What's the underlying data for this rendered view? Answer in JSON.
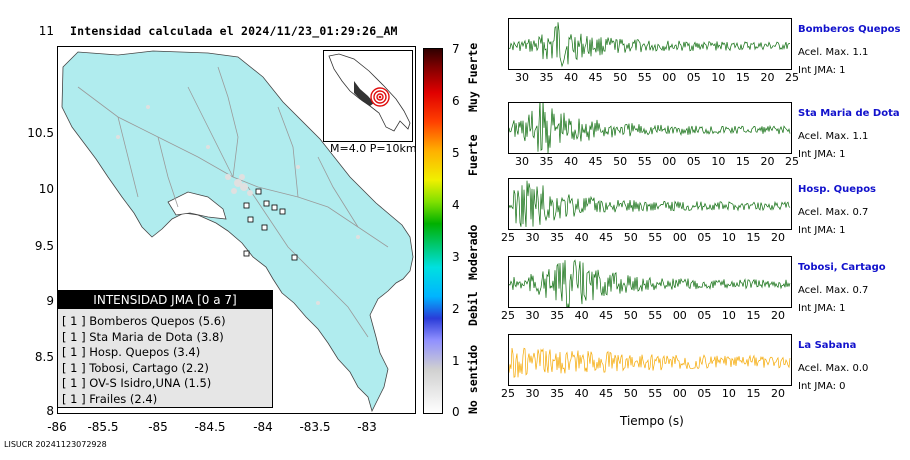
{
  "title": "Intensidad calculada el 2024/11/23_01:29:26_AM",
  "map": {
    "y_ticks": [
      "11",
      "10.5",
      "10",
      "9.5",
      "9",
      "8.5",
      "8"
    ],
    "x_ticks": [
      "-86",
      "-85.5",
      "-85",
      "-84.5",
      "-84",
      "-83.5",
      "-83"
    ],
    "land_color": "#b0ecee",
    "inset_label": "M=4.0 P=10km"
  },
  "legend": {
    "title": "INTENSIDAD JMA [0 a 7]",
    "items": [
      "[ 1 ]  Bomberos Quepos (5.6)",
      "[ 1 ]  Sta Maria de Dota (3.8)",
      "[ 1 ]  Hosp. Quepos (3.4)",
      "[ 1 ]  Tobosi, Cartago (2.2)",
      "[ 1 ]  OV-S Isidro,UNA (1.5)",
      "[ 1 ]  Frailes (2.4)"
    ]
  },
  "colorbar": {
    "ticks": [
      "7",
      "6",
      "5",
      "4",
      "3",
      "2",
      "1",
      "0"
    ],
    "words": [
      "Muy Fuerte",
      "Fuerte",
      "Moderado",
      "Debil",
      "No sentido"
    ]
  },
  "stations": [
    {
      "name": "Bomberos Quepos",
      "accel": "Acel. Max. 1.1",
      "jma": "Int JMA: 1",
      "color": "#0b6b0b",
      "ticks": [
        "30",
        "35",
        "40",
        "45",
        "50",
        "55",
        "00",
        "05",
        "10",
        "15",
        "20",
        "25"
      ]
    },
    {
      "name": "Sta Maria de Dota",
      "accel": "Acel. Max. 1.1",
      "jma": "Int JMA: 1",
      "color": "#0b6b0b",
      "ticks": [
        "30",
        "35",
        "40",
        "45",
        "50",
        "55",
        "00",
        "05",
        "10",
        "15",
        "20",
        "25"
      ]
    },
    {
      "name": "Hosp. Quepos",
      "accel": "Acel. Max. 0.7",
      "jma": "Int JMA: 1",
      "color": "#0b6b0b",
      "ticks": [
        "25",
        "30",
        "35",
        "40",
        "45",
        "50",
        "55",
        "00",
        "05",
        "10",
        "15",
        "20"
      ]
    },
    {
      "name": "Tobosi, Cartago",
      "accel": "Acel. Max. 0.7",
      "jma": "Int JMA: 1",
      "color": "#0b6b0b",
      "ticks": [
        "25",
        "30",
        "35",
        "40",
        "45",
        "50",
        "55",
        "00",
        "05",
        "10",
        "15",
        "20"
      ]
    },
    {
      "name": "La Sabana",
      "accel": "Acel. Max. 0.0",
      "jma": "Int JMA: 0",
      "color": "#f5a800",
      "ticks": [
        "25",
        "30",
        "35",
        "40",
        "45",
        "50",
        "55",
        "00",
        "05",
        "10",
        "15",
        "20"
      ]
    }
  ],
  "time_axis_label": "Tiempo (s)",
  "footer": "LISUCR 20241123072928"
}
